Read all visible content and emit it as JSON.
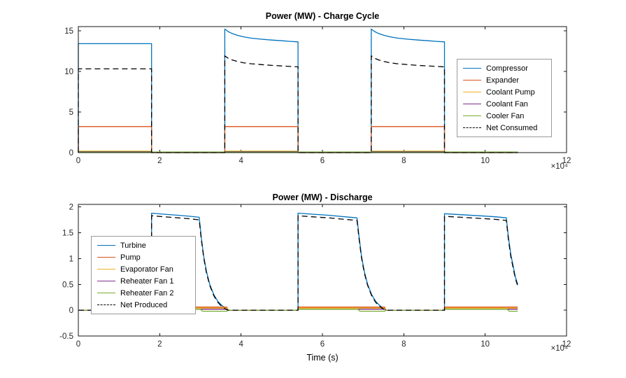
{
  "figure": {
    "background": "#ffffff",
    "axis_color": "#151515"
  },
  "chart_data": [
    {
      "type": "line",
      "title": "Power (MW) - Charge Cycle",
      "xlabel": "",
      "ylabel": "",
      "x_multiplier": "×10⁴",
      "xlim": [
        0,
        12
      ],
      "ylim": [
        0,
        15.5
      ],
      "xticks": [
        0,
        2,
        4,
        6,
        8,
        10,
        12
      ],
      "xtick_labels": [
        "0",
        "2",
        "4",
        "6",
        "8",
        "10",
        "12"
      ],
      "yticks": [
        0,
        5,
        10,
        15
      ],
      "ytick_labels": [
        "0",
        "5",
        "10",
        "15"
      ],
      "grid": false,
      "legend_position": "middle-right",
      "series": [
        {
          "name": "Compressor",
          "color": "#0072BD",
          "dash": false,
          "points": [
            [
              0,
              0
            ],
            [
              0,
              13.4
            ],
            [
              1.8,
              13.4
            ],
            [
              1.8,
              0
            ],
            [
              3.6,
              0
            ],
            [
              3.6,
              15.2
            ],
            [
              3.68,
              14.9
            ],
            [
              3.78,
              14.65
            ],
            [
              3.9,
              14.45
            ],
            [
              4.05,
              14.25
            ],
            [
              4.25,
              14.08
            ],
            [
              4.5,
              13.95
            ],
            [
              4.75,
              13.85
            ],
            [
              5.0,
              13.76
            ],
            [
              5.2,
              13.68
            ],
            [
              5.4,
              13.62
            ],
            [
              5.4,
              0
            ],
            [
              7.2,
              0
            ],
            [
              7.2,
              15.2
            ],
            [
              7.28,
              14.9
            ],
            [
              7.38,
              14.65
            ],
            [
              7.5,
              14.45
            ],
            [
              7.65,
              14.25
            ],
            [
              7.85,
              14.08
            ],
            [
              8.1,
              13.95
            ],
            [
              8.35,
              13.85
            ],
            [
              8.6,
              13.76
            ],
            [
              8.8,
              13.68
            ],
            [
              9.0,
              13.62
            ],
            [
              9.0,
              0
            ],
            [
              10.8,
              0
            ]
          ]
        },
        {
          "name": "Expander",
          "color": "#D95319",
          "dash": false,
          "points": [
            [
              0,
              0
            ],
            [
              0,
              3.2
            ],
            [
              1.8,
              3.2
            ],
            [
              1.8,
              0
            ],
            [
              3.6,
              0
            ],
            [
              3.6,
              3.2
            ],
            [
              5.4,
              3.2
            ],
            [
              5.4,
              0
            ],
            [
              7.2,
              0
            ],
            [
              7.2,
              3.2
            ],
            [
              9.0,
              3.2
            ],
            [
              9.0,
              0
            ],
            [
              10.8,
              0
            ]
          ]
        },
        {
          "name": "Coolant Pump",
          "color": "#EDB120",
          "dash": false,
          "points": [
            [
              0,
              0
            ],
            [
              0,
              0.18
            ],
            [
              1.8,
              0.18
            ],
            [
              1.8,
              0
            ],
            [
              3.6,
              0
            ],
            [
              3.6,
              0.18
            ],
            [
              5.4,
              0.18
            ],
            [
              5.4,
              0
            ],
            [
              7.2,
              0
            ],
            [
              7.2,
              0.18
            ],
            [
              9.0,
              0.18
            ],
            [
              9.0,
              0
            ],
            [
              10.8,
              0
            ]
          ]
        },
        {
          "name": "Coolant Fan",
          "color": "#7E2F8E",
          "dash": false,
          "points": [
            [
              0,
              0
            ],
            [
              0,
              0.12
            ],
            [
              1.8,
              0.12
            ],
            [
              1.8,
              0
            ],
            [
              3.6,
              0
            ],
            [
              3.6,
              0.12
            ],
            [
              5.4,
              0.12
            ],
            [
              5.4,
              0
            ],
            [
              7.2,
              0
            ],
            [
              7.2,
              0.12
            ],
            [
              9.0,
              0.12
            ],
            [
              9.0,
              0
            ],
            [
              10.8,
              0
            ]
          ]
        },
        {
          "name": "Cooler Fan",
          "color": "#77AC30",
          "dash": false,
          "points": [
            [
              0,
              0.07
            ],
            [
              10.8,
              0.07
            ]
          ]
        },
        {
          "name": "Net Consumed",
          "color": "#000000",
          "dash": true,
          "points": [
            [
              0,
              0
            ],
            [
              0,
              10.3
            ],
            [
              1.8,
              10.3
            ],
            [
              1.8,
              0
            ],
            [
              3.6,
              0
            ],
            [
              3.6,
              11.9
            ],
            [
              3.68,
              11.62
            ],
            [
              3.78,
              11.4
            ],
            [
              3.9,
              11.22
            ],
            [
              4.05,
              11.06
            ],
            [
              4.25,
              10.93
            ],
            [
              4.5,
              10.82
            ],
            [
              4.75,
              10.73
            ],
            [
              5.0,
              10.66
            ],
            [
              5.2,
              10.6
            ],
            [
              5.4,
              10.55
            ],
            [
              5.4,
              0
            ],
            [
              7.2,
              0
            ],
            [
              7.2,
              11.9
            ],
            [
              7.28,
              11.62
            ],
            [
              7.38,
              11.4
            ],
            [
              7.5,
              11.22
            ],
            [
              7.65,
              11.06
            ],
            [
              7.85,
              10.93
            ],
            [
              8.1,
              10.82
            ],
            [
              8.35,
              10.73
            ],
            [
              8.6,
              10.66
            ],
            [
              8.8,
              10.6
            ],
            [
              9.0,
              10.55
            ],
            [
              9.0,
              0
            ],
            [
              10.8,
              0
            ]
          ]
        }
      ]
    },
    {
      "type": "line",
      "title": "Power (MW) - Discharge",
      "xlabel": "Time (s)",
      "ylabel": "",
      "x_multiplier": "×10⁴",
      "xlim": [
        0,
        12
      ],
      "ylim": [
        -0.5,
        2.05
      ],
      "xticks": [
        0,
        2,
        4,
        6,
        8,
        10,
        12
      ],
      "xtick_labels": [
        "0",
        "2",
        "4",
        "6",
        "8",
        "10",
        "12"
      ],
      "yticks": [
        -0.5,
        0,
        0.5,
        1,
        1.5,
        2
      ],
      "ytick_labels": [
        "-0.5",
        "0",
        "0.5",
        "1",
        "1.5",
        "2"
      ],
      "grid": false,
      "legend_position": "middle-left",
      "series": [
        {
          "name": "Turbine",
          "color": "#0072BD",
          "dash": false,
          "points": [
            [
              0,
              0
            ],
            [
              1.8,
              0
            ],
            [
              1.8,
              1.88
            ],
            [
              2.1,
              1.86
            ],
            [
              2.45,
              1.84
            ],
            [
              2.75,
              1.82
            ],
            [
              2.97,
              1.8
            ],
            [
              3.02,
              1.42
            ],
            [
              3.08,
              1.05
            ],
            [
              3.15,
              0.75
            ],
            [
              3.23,
              0.5
            ],
            [
              3.33,
              0.3
            ],
            [
              3.43,
              0.17
            ],
            [
              3.53,
              0.09
            ],
            [
              3.62,
              0.04
            ],
            [
              3.68,
              0
            ],
            [
              5.4,
              0
            ],
            [
              5.4,
              1.88
            ],
            [
              5.75,
              1.86
            ],
            [
              6.15,
              1.84
            ],
            [
              6.55,
              1.81
            ],
            [
              6.85,
              1.79
            ],
            [
              6.9,
              1.42
            ],
            [
              6.96,
              1.05
            ],
            [
              7.03,
              0.75
            ],
            [
              7.11,
              0.5
            ],
            [
              7.21,
              0.3
            ],
            [
              7.31,
              0.17
            ],
            [
              7.41,
              0.09
            ],
            [
              7.5,
              0.04
            ],
            [
              7.56,
              0
            ],
            [
              9.0,
              0
            ],
            [
              9.0,
              1.87
            ],
            [
              9.4,
              1.85
            ],
            [
              9.85,
              1.83
            ],
            [
              10.25,
              1.81
            ],
            [
              10.52,
              1.79
            ],
            [
              10.57,
              1.42
            ],
            [
              10.63,
              1.08
            ],
            [
              10.69,
              0.85
            ],
            [
              10.74,
              0.65
            ],
            [
              10.78,
              0.55
            ],
            [
              10.8,
              0.5
            ]
          ]
        },
        {
          "name": "Pump",
          "color": "#D95319",
          "dash": false,
          "points": [
            [
              0,
              0
            ],
            [
              1.8,
              0
            ],
            [
              1.8,
              0.06
            ],
            [
              3.65,
              0.06
            ],
            [
              3.68,
              0
            ],
            [
              5.4,
              0
            ],
            [
              5.4,
              0.06
            ],
            [
              7.53,
              0.06
            ],
            [
              7.56,
              0
            ],
            [
              9.0,
              0
            ],
            [
              9.0,
              0.06
            ],
            [
              10.8,
              0.06
            ]
          ]
        },
        {
          "name": "Evaporator Fan",
          "color": "#EDB120",
          "dash": false,
          "points": [
            [
              0,
              0
            ],
            [
              1.8,
              0
            ],
            [
              1.8,
              0.04
            ],
            [
              3.65,
              0.04
            ],
            [
              3.68,
              0
            ],
            [
              5.4,
              0
            ],
            [
              5.4,
              0.04
            ],
            [
              7.53,
              0.04
            ],
            [
              7.56,
              0
            ],
            [
              9.0,
              0
            ],
            [
              9.0,
              0.04
            ],
            [
              10.8,
              0.04
            ]
          ]
        },
        {
          "name": "Reheater Fan 1",
          "color": "#7E2F8E",
          "dash": false,
          "points": [
            [
              0,
              0
            ],
            [
              1.8,
              0
            ],
            [
              1.8,
              0.02
            ],
            [
              3.65,
              0.02
            ],
            [
              3.68,
              0
            ],
            [
              5.4,
              0
            ],
            [
              5.4,
              0.02
            ],
            [
              7.53,
              0.02
            ],
            [
              7.56,
              0
            ],
            [
              9.0,
              0
            ],
            [
              9.0,
              0.02
            ],
            [
              10.8,
              0.02
            ]
          ]
        },
        {
          "name": "Reheater Fan 2",
          "color": "#77AC30",
          "dash": false,
          "points": [
            [
              0,
              0
            ],
            [
              1.8,
              0
            ],
            [
              1.8,
              0.02
            ],
            [
              3.0,
              0.02
            ],
            [
              3.05,
              -0.02
            ],
            [
              3.65,
              -0.02
            ],
            [
              3.68,
              0
            ],
            [
              5.4,
              0
            ],
            [
              5.4,
              0.02
            ],
            [
              6.87,
              0.02
            ],
            [
              6.92,
              -0.02
            ],
            [
              7.53,
              -0.02
            ],
            [
              7.56,
              0
            ],
            [
              9.0,
              0
            ],
            [
              9.0,
              0.02
            ],
            [
              10.54,
              0.02
            ],
            [
              10.59,
              -0.02
            ],
            [
              10.8,
              -0.02
            ]
          ]
        },
        {
          "name": "Net Produced",
          "color": "#000000",
          "dash": true,
          "points": [
            [
              0,
              0
            ],
            [
              1.8,
              0
            ],
            [
              1.8,
              1.83
            ],
            [
              2.1,
              1.81
            ],
            [
              2.45,
              1.79
            ],
            [
              2.75,
              1.77
            ],
            [
              2.97,
              1.75
            ],
            [
              3.02,
              1.38
            ],
            [
              3.08,
              1.02
            ],
            [
              3.15,
              0.72
            ],
            [
              3.23,
              0.48
            ],
            [
              3.33,
              0.28
            ],
            [
              3.43,
              0.15
            ],
            [
              3.53,
              0.07
            ],
            [
              3.62,
              0.02
            ],
            [
              3.68,
              0
            ],
            [
              5.4,
              0
            ],
            [
              5.4,
              1.83
            ],
            [
              5.75,
              1.81
            ],
            [
              6.15,
              1.79
            ],
            [
              6.55,
              1.76
            ],
            [
              6.85,
              1.74
            ],
            [
              6.9,
              1.38
            ],
            [
              6.96,
              1.02
            ],
            [
              7.03,
              0.72
            ],
            [
              7.11,
              0.48
            ],
            [
              7.21,
              0.28
            ],
            [
              7.31,
              0.15
            ],
            [
              7.41,
              0.07
            ],
            [
              7.5,
              0.02
            ],
            [
              7.56,
              0
            ],
            [
              9.0,
              0
            ],
            [
              9.0,
              1.82
            ],
            [
              9.4,
              1.8
            ],
            [
              9.85,
              1.78
            ],
            [
              10.25,
              1.76
            ],
            [
              10.52,
              1.74
            ],
            [
              10.57,
              1.38
            ],
            [
              10.63,
              1.04
            ],
            [
              10.69,
              0.81
            ],
            [
              10.74,
              0.62
            ],
            [
              10.78,
              0.52
            ],
            [
              10.8,
              0.47
            ]
          ]
        }
      ]
    }
  ]
}
